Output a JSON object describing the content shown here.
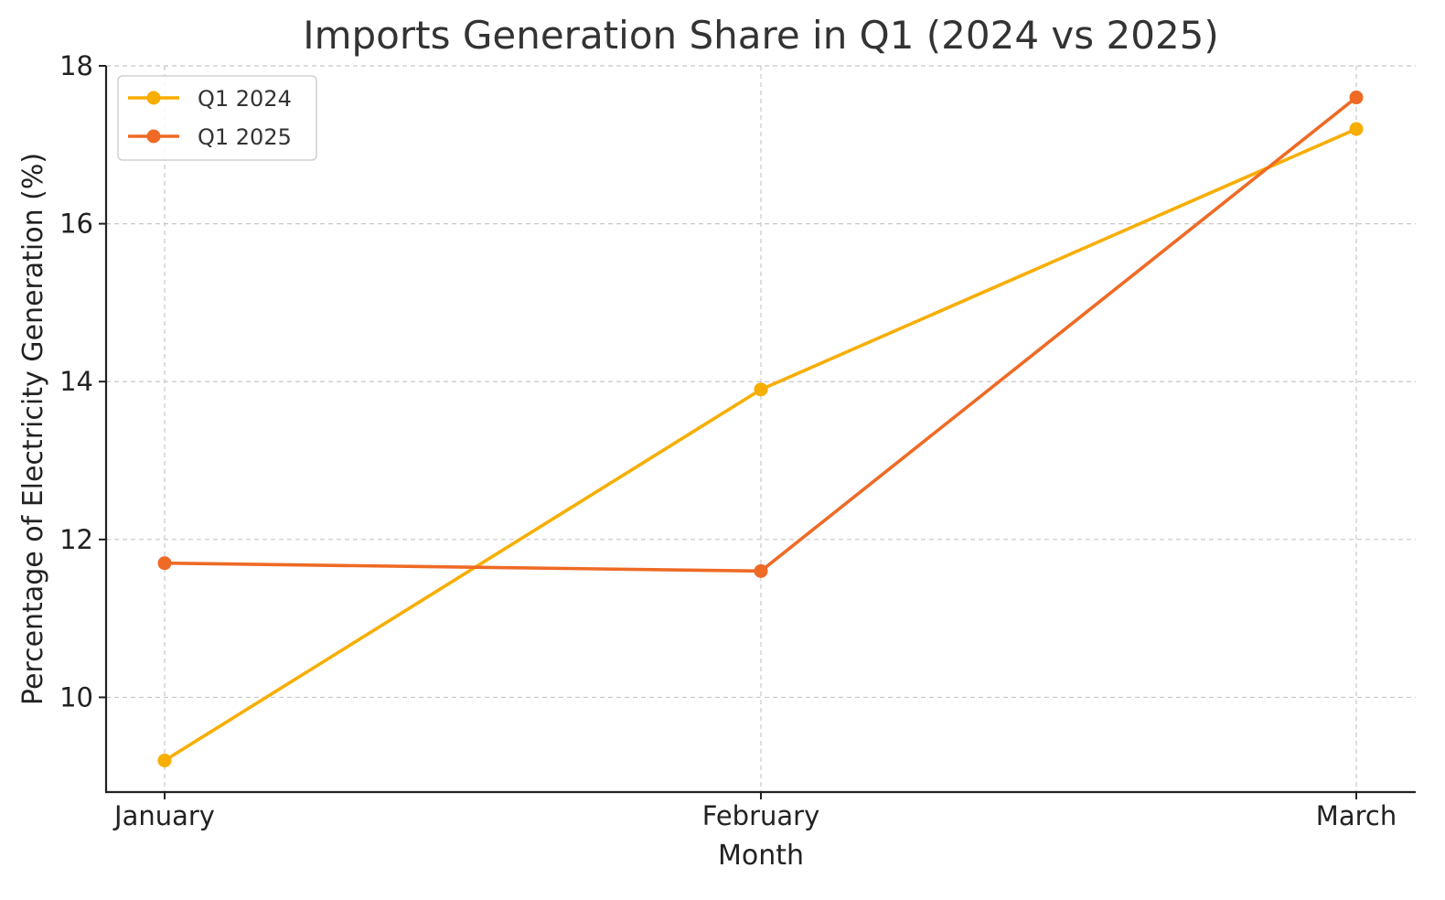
{
  "chart_data": {
    "type": "line",
    "title": "Imports Generation Share in Q1 (2024 vs 2025)",
    "xlabel": "Month",
    "ylabel": "Percentage of Electricity Generation (%)",
    "categories": [
      "January",
      "February",
      "March"
    ],
    "ylim": [
      8.8,
      18
    ],
    "yticks": [
      10,
      12,
      14,
      16,
      18
    ],
    "grid": true,
    "legend_position": "top-left",
    "series": [
      {
        "name": "Q1 2024",
        "color": "#F7AE00",
        "values": [
          9.2,
          13.9,
          17.2
        ]
      },
      {
        "name": "Q1 2025",
        "color": "#EF6A25",
        "values": [
          11.7,
          11.6,
          17.6
        ]
      }
    ]
  }
}
